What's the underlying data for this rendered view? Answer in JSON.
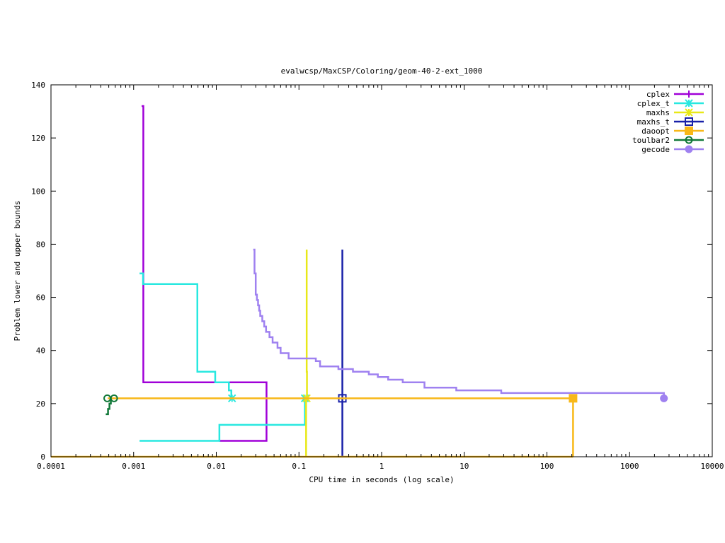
{
  "chart_data": {
    "type": "line",
    "title": "evalwcsp/MaxCSP/Coloring/geom-40-2-ext_1000",
    "xlabel": "CPU time in seconds (log scale)",
    "ylabel": "Problem lower and upper bounds",
    "xscale": "log",
    "xlim": [
      0.0001,
      10000
    ],
    "ylim": [
      0,
      140
    ],
    "x_ticks": [
      {
        "value": 0.0001,
        "label": "0.0001"
      },
      {
        "value": 0.001,
        "label": "0.001"
      },
      {
        "value": 0.01,
        "label": "0.01"
      },
      {
        "value": 0.1,
        "label": "0.1"
      },
      {
        "value": 1,
        "label": "1"
      },
      {
        "value": 10,
        "label": "10"
      },
      {
        "value": 100,
        "label": "100"
      },
      {
        "value": 1000,
        "label": "1000"
      },
      {
        "value": 10000,
        "label": "10000"
      }
    ],
    "y_ticks": [
      {
        "value": 0,
        "label": "0"
      },
      {
        "value": 20,
        "label": "20"
      },
      {
        "value": 40,
        "label": "40"
      },
      {
        "value": 60,
        "label": "60"
      },
      {
        "value": 80,
        "label": "80"
      },
      {
        "value": 100,
        "label": "100"
      },
      {
        "value": 120,
        "label": "120"
      },
      {
        "value": 140,
        "label": "140"
      }
    ],
    "grid": false,
    "legend_position": "top-right",
    "series": [
      {
        "name": "cplex",
        "color": "#a000d8",
        "marker": "plus",
        "lines": [
          [
            [
              0.00125,
              132
            ],
            [
              0.00131,
              132
            ],
            [
              0.00131,
              28
            ],
            [
              0.0405,
              28
            ],
            [
              0.0405,
              22
            ]
          ],
          [
            [
              0.0108,
              6
            ],
            [
              0.0405,
              6
            ],
            [
              0.0405,
              22
            ]
          ]
        ],
        "markers": []
      },
      {
        "name": "cplex_t",
        "color": "#28e8e0",
        "marker": "star",
        "lines": [
          [
            [
              0.00118,
              69
            ],
            [
              0.0013,
              69
            ],
            [
              0.0013,
              65
            ],
            [
              0.0059,
              65
            ],
            [
              0.0059,
              32
            ],
            [
              0.0097,
              32
            ],
            [
              0.0097,
              28
            ],
            [
              0.0142,
              28
            ],
            [
              0.0142,
              25
            ],
            [
              0.0152,
              25
            ],
            [
              0.0152,
              22
            ]
          ],
          [
            [
              0.00118,
              6
            ],
            [
              0.0109,
              6
            ],
            [
              0.0109,
              12
            ],
            [
              0.118,
              12
            ],
            [
              0.118,
              22
            ]
          ]
        ],
        "markers": [
          [
            0.0155,
            22
          ],
          [
            0.118,
            22
          ]
        ]
      },
      {
        "name": "maxhs",
        "color": "#e8e818",
        "marker": "star",
        "lines": [
          [
            [
              0.124,
              78
            ],
            [
              0.124,
              32
            ],
            [
              0.125,
              32
            ],
            [
              0.125,
              22
            ]
          ],
          [
            [
              0.122,
              0
            ],
            [
              0.122,
              22
            ]
          ]
        ],
        "markers": [
          [
            0.124,
            22
          ]
        ]
      },
      {
        "name": "maxhs_t",
        "color": "#1820a8",
        "marker": "square",
        "lines": [
          [
            [
              0.335,
              78
            ],
            [
              0.335,
              0
            ]
          ]
        ],
        "markers": [
          [
            0.335,
            22
          ]
        ]
      },
      {
        "name": "daoopt",
        "color": "#f8b818",
        "marker": "filled-square",
        "lines": [
          [
            [
              0.000485,
              22
            ],
            [
              207,
              22
            ],
            [
              207,
              0
            ]
          ],
          [
            [
              0.0001,
              0
            ],
            [
              207,
              0
            ]
          ]
        ],
        "markers": [
          [
            207,
            22
          ]
        ]
      },
      {
        "name": "toulbar2",
        "color": "#107838",
        "marker": "circle",
        "lines": [
          [
            [
              0.00046,
              16
            ],
            [
              0.00049,
              16
            ],
            [
              0.00049,
              18
            ],
            [
              0.00051,
              18
            ],
            [
              0.00051,
              20
            ],
            [
              0.00053,
              20
            ],
            [
              0.00053,
              22
            ]
          ]
        ],
        "markers": [
          [
            0.00048,
            22
          ],
          [
            0.00058,
            22
          ]
        ]
      },
      {
        "name": "gecode",
        "color": "#9f81f0",
        "marker": "filled-circle",
        "lines": [
          [
            [
              0.028,
              78
            ],
            [
              0.029,
              78
            ],
            [
              0.029,
              69
            ],
            [
              0.03,
              69
            ],
            [
              0.03,
              61
            ],
            [
              0.031,
              61
            ],
            [
              0.031,
              59
            ],
            [
              0.032,
              59
            ],
            [
              0.032,
              57
            ],
            [
              0.033,
              57
            ],
            [
              0.033,
              55
            ],
            [
              0.034,
              55
            ],
            [
              0.034,
              53
            ],
            [
              0.036,
              53
            ],
            [
              0.036,
              51
            ],
            [
              0.038,
              51
            ],
            [
              0.038,
              49
            ],
            [
              0.04,
              49
            ],
            [
              0.04,
              47
            ],
            [
              0.044,
              47
            ],
            [
              0.044,
              45
            ],
            [
              0.048,
              45
            ],
            [
              0.048,
              43
            ],
            [
              0.055,
              43
            ],
            [
              0.055,
              41
            ],
            [
              0.06,
              41
            ],
            [
              0.06,
              39
            ],
            [
              0.075,
              39
            ],
            [
              0.075,
              37
            ],
            [
              0.16,
              37
            ],
            [
              0.16,
              36
            ],
            [
              0.18,
              36
            ],
            [
              0.18,
              34
            ],
            [
              0.3,
              34
            ],
            [
              0.3,
              33
            ],
            [
              0.45,
              33
            ],
            [
              0.45,
              32
            ],
            [
              0.7,
              32
            ],
            [
              0.7,
              31
            ],
            [
              0.9,
              31
            ],
            [
              0.9,
              30
            ],
            [
              1.2,
              30
            ],
            [
              1.2,
              29
            ],
            [
              1.8,
              29
            ],
            [
              1.8,
              28
            ],
            [
              3.3,
              28
            ],
            [
              3.3,
              26
            ],
            [
              8,
              26
            ],
            [
              8,
              25
            ],
            [
              28,
              25
            ],
            [
              28,
              24
            ],
            [
              2600,
              24
            ],
            [
              2600,
              22
            ]
          ]
        ],
        "markers": [
          [
            2600,
            22
          ]
        ]
      }
    ]
  }
}
